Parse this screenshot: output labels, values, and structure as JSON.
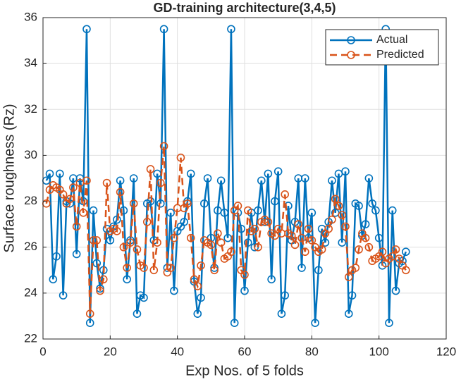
{
  "chart_data": {
    "type": "line",
    "title": "GD-training architecture(3,4,5)",
    "xlabel": "Exp Nos. of 5 folds",
    "ylabel": "Surface roughness (Rz)",
    "x": [
      1,
      2,
      3,
      4,
      5,
      6,
      7,
      8,
      9,
      10,
      11,
      12,
      13,
      14,
      15,
      16,
      17,
      18,
      19,
      20,
      21,
      22,
      23,
      24,
      25,
      26,
      27,
      28,
      29,
      30,
      31,
      32,
      33,
      34,
      35,
      36,
      37,
      38,
      39,
      40,
      41,
      42,
      43,
      44,
      45,
      46,
      47,
      48,
      49,
      50,
      51,
      52,
      53,
      54,
      55,
      56,
      57,
      58,
      59,
      60,
      61,
      62,
      63,
      64,
      65,
      66,
      67,
      68,
      69,
      70,
      71,
      72,
      73,
      74,
      75,
      76,
      77,
      78,
      79,
      80,
      81,
      82,
      83,
      84,
      85,
      86,
      87,
      88,
      89,
      90,
      91,
      92,
      93,
      94,
      95,
      96,
      97,
      98,
      99,
      100,
      101,
      102,
      103,
      104,
      105,
      106,
      107,
      108
    ],
    "series": [
      {
        "name": "Actual",
        "color": "#0072bd",
        "dashed": false,
        "values": [
          28.9,
          29.2,
          24.6,
          25.6,
          29.2,
          23.9,
          28.0,
          27.9,
          29.0,
          25.7,
          29.0,
          28.0,
          35.5,
          22.7,
          27.6,
          25.3,
          24.2,
          25.0,
          26.8,
          26.3,
          26.9,
          27.2,
          28.9,
          27.6,
          24.6,
          26.3,
          29.0,
          23.1,
          23.9,
          23.8,
          27.9,
          28.0,
          26.3,
          29.2,
          27.9,
          35.5,
          25.1,
          27.5,
          24.1,
          26.7,
          26.9,
          27.1,
          28.0,
          29.2,
          24.5,
          23.1,
          23.8,
          27.9,
          29.0,
          26.4,
          25.1,
          27.6,
          28.9,
          27.5,
          26.4,
          35.5,
          22.7,
          27.5,
          26.8,
          24.1,
          26.2,
          27.5,
          26.0,
          27.6,
          28.9,
          27.1,
          29.2,
          24.6,
          28.0,
          29.3,
          23.1,
          23.9,
          27.8,
          26.3,
          27.1,
          29.0,
          25.1,
          29.0,
          26.4,
          27.5,
          22.7,
          25.0,
          26.8,
          26.2,
          27.1,
          28.9,
          27.5,
          29.2,
          26.2,
          29.3,
          23.1,
          23.9,
          27.9,
          27.8,
          26.5,
          27.0,
          29.0,
          27.9,
          27.6,
          26.4,
          25.2,
          35.5,
          22.7,
          27.6,
          24.1,
          25.3,
          25.4,
          25.8
        ]
      },
      {
        "name": "Predicted",
        "color": "#d95319",
        "dashed": true,
        "values": [
          27.9,
          28.5,
          28.7,
          28.6,
          28.5,
          28.3,
          27.9,
          28.1,
          28.6,
          26.9,
          28.8,
          27.5,
          28.9,
          23.1,
          26.3,
          26.3,
          24.1,
          24.6,
          28.8,
          26.7,
          26.8,
          26.7,
          28.4,
          26.0,
          25.1,
          26.2,
          27.9,
          25.9,
          25.2,
          25.1,
          27.1,
          29.4,
          25.0,
          26.2,
          28.8,
          30.4,
          24.9,
          25.1,
          26.4,
          27.7,
          29.9,
          27.7,
          27.9,
          26.4,
          24.6,
          24.3,
          25.2,
          26.3,
          26.2,
          26.1,
          25.0,
          26.6,
          26.2,
          25.5,
          25.6,
          25.8,
          27.6,
          27.8,
          25.0,
          24.8,
          27.6,
          26.7,
          26.8,
          26.0,
          27.1,
          27.2,
          27.1,
          26.6,
          26.5,
          26.8,
          26.6,
          28.3,
          26.6,
          26.5,
          26.1,
          27.0,
          26.4,
          25.8,
          26.8,
          26.3,
          26.0,
          25.8,
          25.9,
          26.6,
          26.8,
          27.2,
          28.1,
          27.8,
          27.4,
          26.9,
          24.7,
          25.0,
          25.1,
          25.9,
          26.6,
          26.4,
          26.0,
          25.4,
          25.5,
          25.6,
          25.8,
          25.3,
          25.5,
          25.6,
          25.9,
          25.5,
          25.2,
          25.0
        ]
      }
    ],
    "xlim": [
      0,
      120
    ],
    "xticks": [
      0,
      20,
      40,
      60,
      80,
      100,
      120
    ],
    "ylim": [
      22,
      36
    ],
    "yticks": [
      22,
      24,
      26,
      28,
      30,
      32,
      34,
      36
    ],
    "grid": true,
    "legend": "northeast"
  }
}
